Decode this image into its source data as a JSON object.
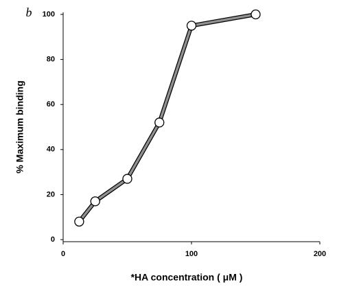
{
  "chart_data": {
    "type": "line",
    "panel_label": "b",
    "x_label": "*HA concentration ( μM )",
    "y_label": "% Maximum binding",
    "x": [
      12.5,
      25,
      50,
      75,
      100,
      150
    ],
    "series": [
      {
        "name": "binding",
        "color": "#909090",
        "values": [
          8,
          17,
          27,
          52,
          95,
          100
        ]
      }
    ],
    "xlim": [
      0,
      200
    ],
    "xticks": [
      0,
      100,
      200
    ],
    "ylim": [
      0,
      100
    ],
    "yticks": [
      0,
      20,
      40,
      60,
      80,
      100
    ]
  }
}
